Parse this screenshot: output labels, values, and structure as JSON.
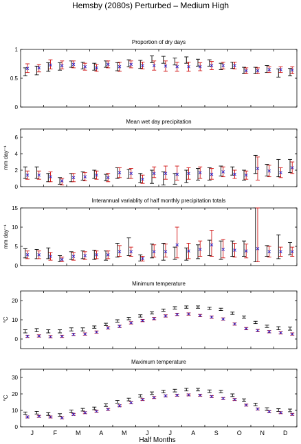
{
  "figure": {
    "title": "Hemsby (2080s) Perturbed – Medium High",
    "xlabel": "Half Months",
    "month_labels": [
      "J",
      "F",
      "M",
      "A",
      "M",
      "J",
      "J",
      "A",
      "S",
      "O",
      "N",
      "D"
    ]
  },
  "colors": {
    "observed": "#000000",
    "model": "#d01010",
    "model_mean": "#1f1fd0"
  },
  "chart_data": [
    {
      "type": "errorbar",
      "title": "Proportion of dry days",
      "ylabel": "",
      "ylim": [
        0,
        1
      ],
      "yticks": [
        0,
        0.5,
        1
      ],
      "yticklabels": [
        "0",
        "0.5",
        "1"
      ],
      "x": [
        1,
        2,
        3,
        4,
        5,
        6,
        7,
        8,
        9,
        10,
        11,
        12,
        13,
        14,
        15,
        16,
        17,
        18,
        19,
        20,
        21,
        22,
        23,
        24
      ],
      "series": [
        {
          "mean": [
            0.61,
            0.63,
            0.7,
            0.7,
            0.74,
            0.72,
            0.7,
            0.74,
            0.7,
            0.76,
            0.74,
            0.83,
            0.82,
            0.79,
            0.81,
            0.77,
            0.76,
            0.7,
            0.72,
            0.63,
            0.63,
            0.66,
            0.59,
            0.6
          ],
          "low": [
            0.54,
            0.56,
            0.62,
            0.64,
            0.69,
            0.66,
            0.64,
            0.69,
            0.63,
            0.7,
            0.67,
            0.77,
            0.76,
            0.73,
            0.76,
            0.71,
            0.71,
            0.65,
            0.67,
            0.58,
            0.58,
            0.6,
            0.52,
            0.54
          ],
          "high": [
            0.68,
            0.71,
            0.77,
            0.77,
            0.8,
            0.78,
            0.76,
            0.8,
            0.77,
            0.82,
            0.81,
            0.89,
            0.88,
            0.85,
            0.87,
            0.83,
            0.82,
            0.76,
            0.78,
            0.69,
            0.69,
            0.72,
            0.66,
            0.67
          ]
        },
        {
          "mean": [
            0.68,
            0.68,
            0.74,
            0.73,
            0.74,
            0.7,
            0.68,
            0.74,
            0.7,
            0.74,
            0.72,
            0.72,
            0.71,
            0.7,
            0.7,
            0.7,
            0.72,
            0.72,
            0.72,
            0.63,
            0.63,
            0.65,
            0.65,
            0.64
          ],
          "low": [
            0.6,
            0.61,
            0.66,
            0.66,
            0.68,
            0.64,
            0.62,
            0.68,
            0.62,
            0.68,
            0.66,
            0.64,
            0.62,
            0.62,
            0.62,
            0.63,
            0.65,
            0.66,
            0.66,
            0.58,
            0.58,
            0.6,
            0.6,
            0.58
          ],
          "high": [
            0.75,
            0.74,
            0.82,
            0.8,
            0.8,
            0.76,
            0.74,
            0.8,
            0.78,
            0.8,
            0.78,
            0.8,
            0.8,
            0.78,
            0.78,
            0.77,
            0.79,
            0.78,
            0.78,
            0.68,
            0.68,
            0.7,
            0.7,
            0.7
          ]
        }
      ],
      "marker_mean": [
        0.67,
        0.68,
        0.73,
        0.72,
        0.74,
        0.7,
        0.68,
        0.74,
        0.7,
        0.74,
        0.72,
        0.72,
        0.71,
        0.7,
        0.7,
        0.7,
        0.72,
        0.72,
        0.72,
        0.63,
        0.63,
        0.65,
        0.65,
        0.64
      ]
    },
    {
      "type": "errorbar",
      "title": "Mean wet day precipitation",
      "ylabel": "mm day⁻¹",
      "ylim": [
        0,
        7
      ],
      "yticks": [
        0,
        2,
        4,
        6
      ],
      "yticklabels": [
        "0",
        "2",
        "4",
        "6"
      ],
      "x": [
        1,
        2,
        3,
        4,
        5,
        6,
        7,
        8,
        9,
        10,
        11,
        12,
        13,
        14,
        15,
        16,
        17,
        18,
        19,
        20,
        21,
        22,
        23,
        24
      ],
      "series": [
        {
          "mean": [
            1.7,
            1.7,
            1.1,
            0.7,
            1.1,
            1.3,
            1.5,
            1.1,
            1.6,
            1.5,
            1.1,
            1.2,
            1.0,
            0.9,
            1.2,
            1.5,
            1.5,
            1.9,
            1.9,
            1.4,
            2.3,
            2.0,
            2.1,
            2.5
          ],
          "low": [
            1.0,
            1.0,
            0.6,
            0.3,
            0.6,
            0.8,
            1.0,
            0.7,
            1.0,
            1.0,
            0.5,
            0.4,
            0.2,
            0.3,
            0.5,
            0.8,
            0.8,
            1.3,
            1.4,
            0.8,
            1.6,
            1.3,
            1.2,
            1.7
          ],
          "high": [
            2.4,
            2.4,
            1.6,
            1.1,
            1.6,
            1.8,
            2.0,
            1.5,
            2.3,
            2.1,
            1.6,
            2.0,
            1.8,
            1.6,
            2.0,
            2.2,
            2.3,
            2.5,
            2.4,
            2.0,
            3.8,
            2.7,
            3.3,
            3.3
          ]
        },
        {
          "mean": [
            1.4,
            1.4,
            1.2,
            0.6,
            1.1,
            1.2,
            1.4,
            1.1,
            1.7,
            1.6,
            0.9,
            1.7,
            1.7,
            1.6,
            1.6,
            1.7,
            1.5,
            1.8,
            1.5,
            1.4,
            2.2,
            1.9,
            1.7,
            2.3
          ],
          "low": [
            0.9,
            0.9,
            0.6,
            0.2,
            0.6,
            0.7,
            0.9,
            0.6,
            1.1,
            1.0,
            0.4,
            1.1,
            0.9,
            0.8,
            0.9,
            1.0,
            0.9,
            1.2,
            1.0,
            0.9,
            0.8,
            1.2,
            1.1,
            1.6
          ],
          "high": [
            1.9,
            1.9,
            1.8,
            1.0,
            1.6,
            1.7,
            1.9,
            1.6,
            2.3,
            2.2,
            1.4,
            2.4,
            2.5,
            2.5,
            2.3,
            2.4,
            2.2,
            2.4,
            2.0,
            1.9,
            3.6,
            2.6,
            2.3,
            3.0
          ]
        }
      ],
      "marker_mean": [
        1.4,
        1.4,
        1.2,
        0.7,
        1.1,
        1.2,
        1.4,
        1.1,
        1.7,
        1.6,
        0.9,
        1.6,
        1.6,
        1.5,
        1.6,
        1.7,
        1.5,
        1.8,
        1.5,
        1.4,
        2.2,
        1.9,
        1.7,
        2.3
      ]
    },
    {
      "type": "errorbar",
      "title": "Interannual variablity of half monthly precipitation totals",
      "ylabel": "mm day⁻¹",
      "ylim": [
        0,
        15
      ],
      "yticks": [
        0,
        5,
        10,
        15
      ],
      "yticklabels": [
        "0",
        "5",
        "10",
        "15"
      ],
      "x": [
        1,
        2,
        3,
        4,
        5,
        6,
        7,
        8,
        9,
        10,
        11,
        12,
        13,
        14,
        15,
        16,
        17,
        18,
        19,
        20,
        21,
        22,
        23,
        24
      ],
      "series": [
        {
          "mean": [
            3.2,
            3.0,
            3.2,
            1.8,
            2.6,
            2.8,
            2.8,
            2.6,
            4.0,
            4.8,
            2.0,
            3.8,
            3.6,
            3.2,
            3.0,
            3.6,
            4.6,
            4.0,
            4.4,
            4.4,
            4.5,
            3.8,
            4.8,
            4.4
          ],
          "low": [
            2.0,
            1.8,
            1.8,
            1.0,
            1.6,
            1.8,
            1.6,
            1.4,
            2.2,
            2.6,
            1.2,
            2.0,
            1.4,
            1.6,
            1.4,
            1.8,
            2.6,
            1.6,
            2.4,
            2.4,
            1.0,
            2.4,
            1.8,
            2.8
          ],
          "high": [
            4.4,
            4.2,
            4.6,
            2.6,
            3.6,
            3.8,
            4.0,
            3.8,
            5.8,
            7.2,
            2.8,
            5.6,
            5.8,
            4.8,
            4.6,
            5.4,
            6.6,
            6.4,
            6.4,
            6.4,
            15.0,
            5.2,
            8.0,
            6.0
          ]
        },
        {
          "mean": [
            2.8,
            2.8,
            2.4,
            1.6,
            2.4,
            2.6,
            2.8,
            2.8,
            3.8,
            3.6,
            1.8,
            3.8,
            3.8,
            5.6,
            3.8,
            4.4,
            5.8,
            4.4,
            4.0,
            3.8,
            4.4,
            3.6,
            3.6,
            3.6
          ],
          "low": [
            1.8,
            1.8,
            1.4,
            1.0,
            1.4,
            1.6,
            1.8,
            1.8,
            2.4,
            2.4,
            1.2,
            2.2,
            2.2,
            2.0,
            1.8,
            2.4,
            2.4,
            2.0,
            2.2,
            2.0,
            1.0,
            2.2,
            2.4,
            2.4
          ],
          "high": [
            3.8,
            3.8,
            3.4,
            2.2,
            3.4,
            3.6,
            3.8,
            3.8,
            5.2,
            4.8,
            2.4,
            5.4,
            5.6,
            10.0,
            5.8,
            6.4,
            9.2,
            6.8,
            5.8,
            5.6,
            15.0,
            5.0,
            4.8,
            4.8
          ]
        }
      ],
      "marker_mean": [
        2.8,
        2.8,
        2.4,
        1.6,
        2.4,
        2.6,
        2.8,
        2.8,
        3.6,
        3.6,
        1.8,
        3.6,
        3.6,
        5.4,
        3.8,
        4.2,
        5.4,
        4.2,
        4.0,
        3.8,
        4.4,
        3.6,
        3.6,
        3.6
      ]
    },
    {
      "type": "errorbar",
      "title": "Minimum temperature",
      "ylabel": "°C",
      "ylim": [
        -5,
        25
      ],
      "yticks": [
        0,
        10,
        20
      ],
      "yticklabels": [
        "0",
        "10",
        "20"
      ],
      "x": [
        1,
        2,
        3,
        4,
        5,
        6,
        7,
        8,
        9,
        10,
        11,
        12,
        13,
        14,
        15,
        16,
        17,
        18,
        19,
        20,
        21,
        22,
        23,
        24
      ],
      "series": [
        {
          "mean": [
            4.0,
            4.6,
            4.0,
            4.0,
            5.0,
            5.0,
            6.2,
            7.6,
            9.4,
            10.6,
            12.0,
            13.6,
            15.0,
            16.2,
            16.6,
            16.6,
            16.0,
            15.4,
            13.4,
            11.4,
            8.6,
            6.6,
            5.6,
            5.4
          ],
          "low": [
            3.2,
            3.8,
            3.2,
            3.2,
            4.2,
            4.2,
            5.6,
            7.0,
            8.8,
            10.0,
            11.4,
            13.0,
            14.4,
            15.6,
            16.0,
            16.0,
            15.4,
            14.8,
            12.8,
            10.8,
            8.0,
            6.0,
            4.8,
            4.6
          ],
          "high": [
            4.8,
            5.4,
            4.8,
            4.8,
            5.8,
            5.8,
            6.8,
            8.2,
            10.0,
            11.2,
            12.6,
            14.2,
            15.6,
            16.8,
            17.2,
            17.2,
            16.6,
            16.0,
            14.0,
            12.0,
            9.2,
            7.2,
            6.4,
            6.2
          ]
        },
        {
          "mean": [
            1.4,
            1.6,
            1.2,
            1.4,
            2.4,
            2.6,
            3.6,
            5.8,
            6.6,
            8.4,
            9.6,
            10.6,
            12.0,
            12.8,
            13.0,
            12.2,
            11.4,
            10.4,
            7.8,
            5.4,
            4.4,
            3.8,
            3.2,
            2.6
          ],
          "low": [
            0.8,
            1.0,
            0.6,
            0.8,
            1.8,
            2.0,
            3.0,
            5.2,
            6.0,
            7.8,
            9.0,
            10.0,
            11.4,
            12.2,
            12.4,
            11.6,
            10.8,
            9.8,
            7.2,
            4.8,
            3.8,
            3.2,
            2.6,
            2.0
          ],
          "high": [
            2.0,
            2.2,
            1.8,
            2.0,
            3.0,
            3.2,
            4.2,
            6.4,
            7.2,
            9.0,
            10.2,
            11.2,
            12.6,
            13.4,
            13.6,
            12.8,
            12.0,
            11.0,
            8.4,
            6.0,
            5.0,
            4.4,
            3.8,
            3.2
          ]
        }
      ],
      "marker_mean": [
        1.4,
        1.6,
        1.2,
        1.4,
        2.4,
        2.6,
        3.6,
        5.8,
        6.6,
        8.4,
        9.6,
        10.6,
        12.0,
        12.8,
        13.0,
        12.2,
        11.4,
        10.4,
        7.8,
        5.4,
        4.4,
        3.8,
        3.2,
        2.6
      ]
    },
    {
      "type": "errorbar",
      "title": "Maximum temperature",
      "ylabel": "°C",
      "ylim": [
        0,
        35
      ],
      "yticks": [
        0,
        10,
        20,
        30
      ],
      "yticklabels": [
        "0",
        "10",
        "20",
        "30"
      ],
      "x": [
        1,
        2,
        3,
        4,
        5,
        6,
        7,
        8,
        9,
        10,
        11,
        12,
        13,
        14,
        15,
        16,
        17,
        18,
        19,
        20,
        21,
        22,
        23,
        24
      ],
      "series": [
        {
          "mean": [
            8.2,
            8.6,
            7.8,
            7.2,
            9.4,
            10.4,
            11.2,
            13.2,
            15.2,
            16.6,
            18.8,
            20.4,
            21.4,
            22.0,
            22.6,
            22.6,
            21.6,
            21.4,
            19.2,
            16.2,
            13.6,
            10.8,
            10.2,
            10.0
          ],
          "low": [
            7.4,
            7.8,
            7.0,
            6.4,
            8.6,
            9.6,
            10.4,
            12.4,
            14.4,
            15.8,
            18.0,
            19.6,
            20.6,
            21.2,
            21.8,
            21.8,
            20.8,
            20.6,
            18.4,
            15.4,
            12.8,
            10.0,
            9.4,
            9.2
          ],
          "high": [
            9.0,
            9.4,
            8.6,
            8.0,
            10.2,
            11.2,
            12.0,
            14.0,
            16.0,
            17.4,
            19.6,
            21.2,
            22.2,
            22.8,
            23.4,
            23.4,
            22.4,
            22.2,
            20.0,
            17.0,
            14.4,
            11.6,
            11.0,
            10.8
          ]
        },
        {
          "mean": [
            6.0,
            6.4,
            6.0,
            5.4,
            7.6,
            8.6,
            9.4,
            10.6,
            12.8,
            14.6,
            16.6,
            17.8,
            18.8,
            19.2,
            19.4,
            19.2,
            18.4,
            17.2,
            16.6,
            13.2,
            10.8,
            9.2,
            8.6,
            7.6
          ],
          "low": [
            5.4,
            5.8,
            5.4,
            4.8,
            7.0,
            8.0,
            8.8,
            10.0,
            12.2,
            14.0,
            16.0,
            17.2,
            18.2,
            18.6,
            18.8,
            18.6,
            17.8,
            16.6,
            16.0,
            12.6,
            10.2,
            8.6,
            8.0,
            7.0
          ],
          "high": [
            6.6,
            7.0,
            6.6,
            6.0,
            8.2,
            9.2,
            10.0,
            11.2,
            13.4,
            15.2,
            17.2,
            18.4,
            19.4,
            19.8,
            20.0,
            19.8,
            19.0,
            17.8,
            17.2,
            13.8,
            11.4,
            9.8,
            9.2,
            8.2
          ]
        }
      ],
      "marker_mean": [
        6.0,
        6.4,
        6.0,
        5.4,
        7.6,
        8.6,
        9.4,
        10.6,
        12.8,
        14.6,
        16.6,
        17.8,
        18.8,
        19.2,
        19.4,
        19.2,
        18.4,
        17.2,
        16.6,
        13.2,
        10.8,
        9.2,
        8.6,
        7.6
      ]
    }
  ]
}
